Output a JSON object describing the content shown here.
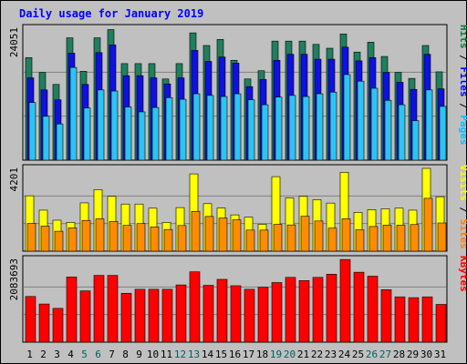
{
  "chart_data": {
    "title": "Daily usage for January 2019",
    "type": "bar",
    "days": [
      "1",
      "2",
      "3",
      "4",
      "5",
      "6",
      "7",
      "8",
      "9",
      "10",
      "11",
      "12",
      "13",
      "14",
      "15",
      "16",
      "17",
      "18",
      "19",
      "20",
      "21",
      "22",
      "23",
      "24",
      "25",
      "26",
      "27",
      "28",
      "29",
      "30",
      "31"
    ],
    "weekend_days": [
      "5",
      "6",
      "12",
      "13",
      "19",
      "20",
      "26",
      "27"
    ],
    "panels": [
      {
        "id": "hits",
        "axis_max_label": "24051",
        "ymax": 24051,
        "legend": [
          {
            "label": "Pages",
            "color": "#00c0ff"
          },
          {
            "label": "Files",
            "color": "#0000ff"
          },
          {
            "label": "Hits",
            "color": "#008040"
          }
        ],
        "series": [
          {
            "name": "Hits",
            "color": "#1f7f5f",
            "values": [
              18700,
              16000,
              13800,
              22300,
              16200,
              22300,
              23800,
              17600,
              17600,
              17600,
              14800,
              17600,
              23200,
              20900,
              22000,
              18200,
              14800,
              16300,
              21700,
              21700,
              21700,
              21100,
              20400,
              23000,
              19700,
              21500,
              18900,
              16000,
              14900,
              20900,
              16100
            ]
          },
          {
            "name": "Files",
            "color": "#1010e0",
            "values": [
              15000,
              12800,
              11000,
              19500,
              13800,
              19600,
              21000,
              15400,
              15400,
              15000,
              13900,
              15000,
              20000,
              18000,
              18800,
              17700,
              13400,
              14700,
              18200,
              19300,
              19300,
              18400,
              18400,
              20600,
              18100,
              18700,
              16000,
              14200,
              12900,
              19300,
              13000
            ]
          },
          {
            "name": "Pages",
            "color": "#2cc4f2",
            "values": [
              10500,
              8000,
              6600,
              16900,
              9500,
              12800,
              12600,
              9700,
              8800,
              9600,
              11400,
              11100,
              12100,
              11800,
              11600,
              12100,
              11000,
              10100,
              11500,
              11800,
              11600,
              12100,
              12400,
              15600,
              14400,
              13100,
              10900,
              10100,
              7200,
              12800,
              9800
            ]
          }
        ]
      },
      {
        "id": "visits",
        "axis_max_label": "4201",
        "ymax": 4201,
        "legend": [
          {
            "label": "Sites",
            "color": "#ff8000"
          },
          {
            "label": "Visits",
            "color": "#ffff00"
          }
        ],
        "series": [
          {
            "name": "Visits",
            "color": "#ffff00",
            "values": [
              2810,
              2080,
              1570,
              1460,
              2450,
              3120,
              2780,
              2390,
              2390,
              2180,
              1460,
              2210,
              3920,
              2410,
              2190,
              1840,
              1720,
              1370,
              3780,
              2700,
              2780,
              2610,
              2440,
              4000,
              1970,
              2100,
              2150,
              2180,
              2080,
              4200,
              2760
            ]
          },
          {
            "name": "Sites",
            "color": "#ff8c00",
            "values": [
              1410,
              1270,
              1010,
              1180,
              1560,
              1640,
              1510,
              1310,
              1400,
              1230,
              1100,
              1300,
              2020,
              1760,
              1680,
              1590,
              1070,
              1070,
              1360,
              1330,
              1770,
              1530,
              1170,
              1640,
              1090,
              1250,
              1320,
              1320,
              1350,
              2680,
              1430
            ]
          }
        ]
      },
      {
        "id": "kbytes",
        "axis_max_label": "2083693",
        "ymax": 2083693,
        "legend": [
          {
            "label": "KBytes",
            "color": "#ff0000"
          }
        ],
        "series": [
          {
            "name": "KBytes",
            "color": "#ff0000",
            "values": [
              1150000,
              960000,
              850000,
              1640000,
              1290000,
              1680000,
              1680000,
              1230000,
              1330000,
              1330000,
              1330000,
              1440000,
              1770000,
              1430000,
              1580000,
              1420000,
              1330000,
              1380000,
              1500000,
              1630000,
              1550000,
              1630000,
              1710000,
              2080000,
              1760000,
              1660000,
              1320000,
              1140000,
              1120000,
              1140000,
              950000
            ]
          }
        ]
      }
    ]
  }
}
